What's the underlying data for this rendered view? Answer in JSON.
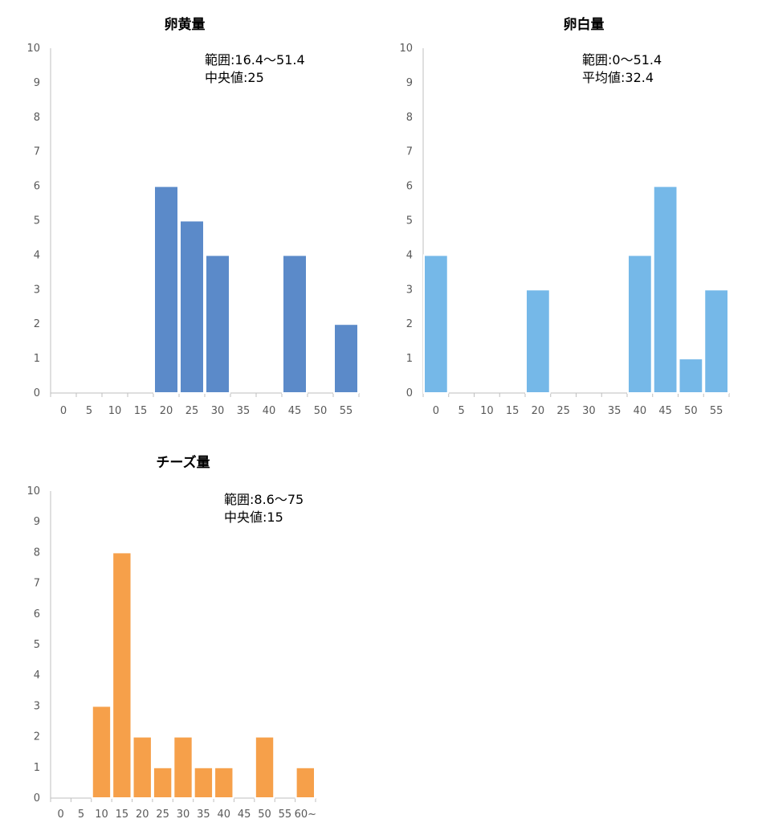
{
  "chart_data": [
    {
      "type": "bar",
      "title": "卵黄量",
      "categories": [
        "0",
        "5",
        "10",
        "15",
        "20",
        "25",
        "30",
        "35",
        "40",
        "45",
        "50",
        "55"
      ],
      "values": [
        0,
        0,
        0,
        0,
        6,
        5,
        4,
        0,
        0,
        4,
        0,
        2
      ],
      "ylim": [
        0,
        10
      ],
      "yticks": [
        "0",
        "1",
        "2",
        "3",
        "4",
        "5",
        "6",
        "7",
        "8",
        "9",
        "10"
      ],
      "annotations": [
        "範囲:16.4～51.4",
        "中央値:25"
      ],
      "color": "#5b8ac9",
      "grid": false,
      "legend": "none"
    },
    {
      "type": "bar",
      "title": "卵白量",
      "categories": [
        "0",
        "5",
        "10",
        "15",
        "20",
        "25",
        "30",
        "35",
        "40",
        "45",
        "50",
        "55"
      ],
      "values": [
        4,
        0,
        0,
        0,
        3,
        0,
        0,
        0,
        4,
        6,
        1,
        3
      ],
      "ylim": [
        0,
        10
      ],
      "yticks": [
        "0",
        "1",
        "2",
        "3",
        "4",
        "5",
        "6",
        "7",
        "8",
        "9",
        "10"
      ],
      "annotations": [
        "範囲:0～51.4",
        "平均値:32.4"
      ],
      "color": "#75b8e8",
      "grid": false,
      "legend": "none"
    },
    {
      "type": "bar",
      "title": "チーズ量",
      "categories": [
        "0",
        "5",
        "10",
        "15",
        "20",
        "25",
        "30",
        "35",
        "40",
        "45",
        "50",
        "55",
        "60~"
      ],
      "values": [
        0,
        0,
        3,
        8,
        2,
        1,
        2,
        1,
        1,
        0,
        2,
        0,
        1
      ],
      "ylim": [
        0,
        10
      ],
      "yticks": [
        "0",
        "1",
        "2",
        "3",
        "4",
        "5",
        "6",
        "7",
        "8",
        "9",
        "10"
      ],
      "annotations": [
        "範囲:8.6～75",
        "中央値:15"
      ],
      "color": "#f6a04a",
      "grid": false,
      "legend": "none"
    }
  ]
}
